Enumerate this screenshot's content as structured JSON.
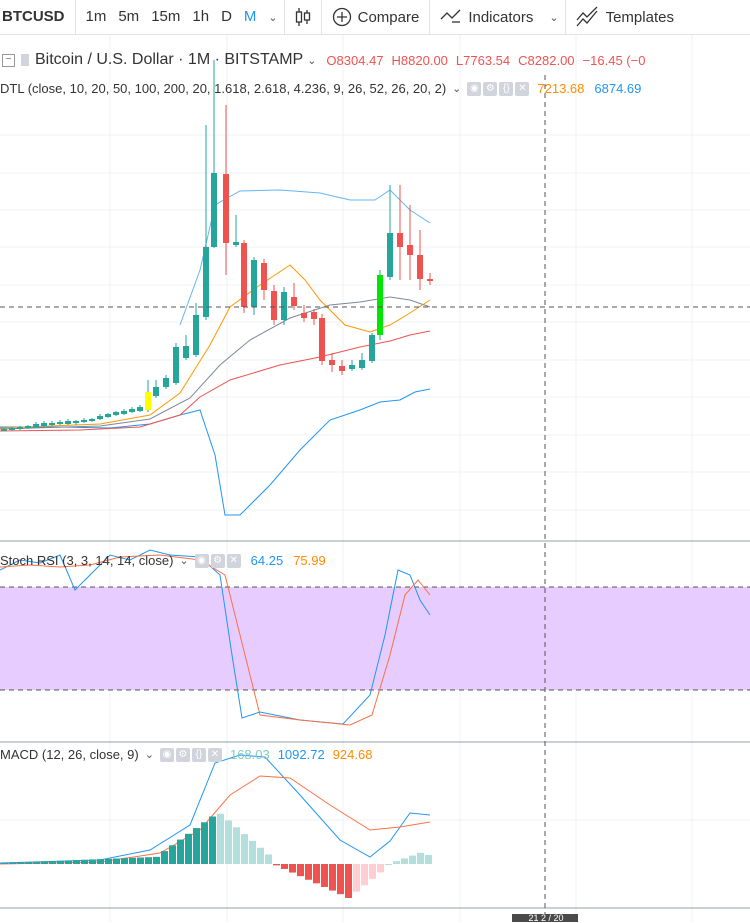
{
  "toolbar": {
    "symbol": "BTCUSD",
    "timeframes": [
      {
        "label": "1m",
        "active": false
      },
      {
        "label": "5m",
        "active": false
      },
      {
        "label": "15m",
        "active": false
      },
      {
        "label": "1h",
        "active": false
      },
      {
        "label": "D",
        "active": false
      },
      {
        "label": "M",
        "active": true
      }
    ],
    "compare_label": "Compare",
    "indicators_label": "Indicators",
    "templates_label": "Templates"
  },
  "legend": {
    "title": "Bitcoin / U.S. Dollar · 1M · BITSTAMP",
    "open": "O8304.47",
    "high": "H8820.00",
    "low": "L7763.54",
    "close": "C8282.00",
    "change": "−16.45 (−0",
    "dtl": "DTL (close, 10, 20, 50, 100, 200, 20, 1.618, 2.618, 4.236, 9, 26, 52, 26, 20, 2)",
    "dtl_val1": "7213.68",
    "dtl_val2": "6874.69"
  },
  "stoch": {
    "label": "Stoch RSI (3, 3, 14, 14, close)",
    "k": "64.25",
    "d": "75.99"
  },
  "macd": {
    "label": "MACD (12, 26, close, 9)",
    "hist": "168.03",
    "macd": "1092.72",
    "signal": "924.68"
  },
  "bottom_label": "21 2 / 20",
  "colors": {
    "up": "#26a69a",
    "down": "#ef5350",
    "accent": "#2196f3",
    "stoch_band": "#e6ccff"
  },
  "chart_data": [
    {
      "type": "candlestick",
      "title": "Bitcoin / U.S. Dollar · 1M · BITSTAMP",
      "last_bar": {
        "open": 8304.47,
        "high": 8820.0,
        "low": 7763.54,
        "close": 8282.0
      }
    },
    {
      "type": "line",
      "title": "Stoch RSI (3, 3, 14, 14, close)",
      "series": [
        {
          "name": "K",
          "last": 64.25
        },
        {
          "name": "D",
          "last": 75.99
        }
      ]
    },
    {
      "type": "bar",
      "title": "MACD (12, 26, close, 9)",
      "series": [
        {
          "name": "Histogram",
          "last": 168.03
        },
        {
          "name": "MACD",
          "last": 1092.72
        },
        {
          "name": "Signal",
          "last": 924.68
        }
      ]
    }
  ]
}
